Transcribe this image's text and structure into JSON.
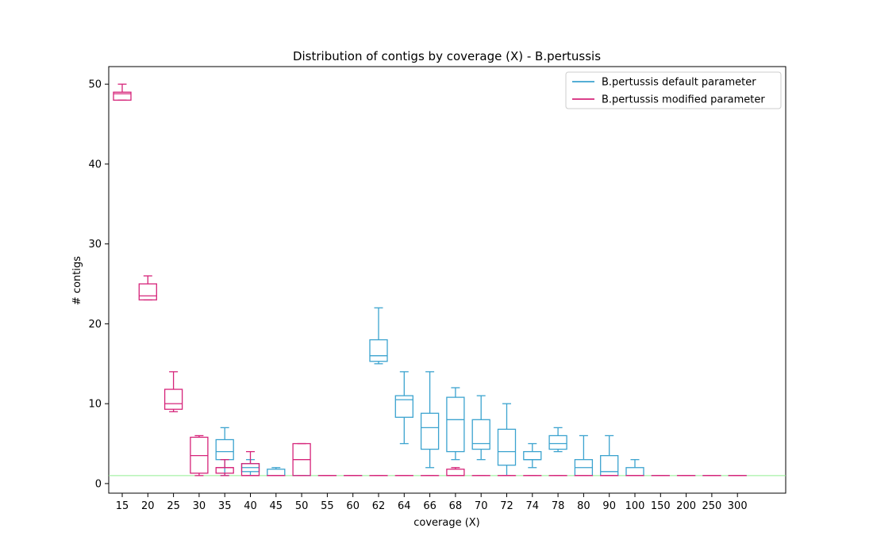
{
  "chart_data": {
    "type": "boxplot",
    "title": "Distribution of contigs by coverage (X) - B.pertussis",
    "xlabel": "coverage (X)",
    "ylabel": "# contigs",
    "ylim": [
      -1.2,
      52.2
    ],
    "yticks": [
      0,
      10,
      20,
      30,
      40,
      50
    ],
    "categories": [
      "15",
      "20",
      "25",
      "30",
      "35",
      "40",
      "45",
      "50",
      "55",
      "60",
      "62",
      "64",
      "66",
      "68",
      "70",
      "72",
      "74",
      "78",
      "80",
      "90",
      "100",
      "150",
      "200",
      "250",
      "300"
    ],
    "reference_line": {
      "y": 1,
      "color": "#90ee90"
    },
    "legend": {
      "placement": "top-right"
    },
    "series": [
      {
        "name": "B.pertussis default parameter",
        "color": "#3ba3cf",
        "boxes": [
          null,
          null,
          null,
          null,
          {
            "whislo": 1,
            "q1": 3,
            "med": 4,
            "q3": 5.5,
            "whishi": 7
          },
          {
            "whislo": 1,
            "q1": 1.5,
            "med": 2,
            "q3": 2.5,
            "whishi": 3
          },
          {
            "whislo": 1,
            "q1": 1,
            "med": 1,
            "q3": 1.8,
            "whishi": 2
          },
          {
            "whislo": 1,
            "q1": 1,
            "med": 1,
            "q3": 1,
            "whishi": 1
          },
          {
            "whislo": 1,
            "q1": 1,
            "med": 1,
            "q3": 1,
            "whishi": 1
          },
          {
            "whislo": 1,
            "q1": 1,
            "med": 1,
            "q3": 1,
            "whishi": 1
          },
          {
            "whislo": 15,
            "q1": 15.3,
            "med": 16,
            "q3": 18,
            "whishi": 22
          },
          {
            "whislo": 5,
            "q1": 8.3,
            "med": 10.5,
            "q3": 11,
            "whishi": 14
          },
          {
            "whislo": 2,
            "q1": 4.3,
            "med": 7,
            "q3": 8.8,
            "whishi": 14
          },
          {
            "whislo": 3,
            "q1": 4,
            "med": 8,
            "q3": 10.8,
            "whishi": 12
          },
          {
            "whislo": 3,
            "q1": 4.3,
            "med": 5,
            "q3": 8,
            "whishi": 11
          },
          {
            "whislo": 1,
            "q1": 2.3,
            "med": 4,
            "q3": 6.8,
            "whishi": 10
          },
          {
            "whislo": 2,
            "q1": 3,
            "med": 3,
            "q3": 4,
            "whishi": 5
          },
          {
            "whislo": 4,
            "q1": 4.3,
            "med": 5,
            "q3": 6,
            "whishi": 7
          },
          {
            "whislo": 1,
            "q1": 1,
            "med": 2,
            "q3": 3,
            "whishi": 6
          },
          {
            "whislo": 1,
            "q1": 1,
            "med": 1.5,
            "q3": 3.5,
            "whishi": 6
          },
          {
            "whislo": 1,
            "q1": 1,
            "med": 1,
            "q3": 2,
            "whishi": 3
          },
          {
            "whislo": 1,
            "q1": 1,
            "med": 1,
            "q3": 1,
            "whishi": 1
          },
          {
            "whislo": 1,
            "q1": 1,
            "med": 1,
            "q3": 1,
            "whishi": 1
          },
          {
            "whislo": 1,
            "q1": 1,
            "med": 1,
            "q3": 1,
            "whishi": 1
          },
          {
            "whislo": 1,
            "q1": 1,
            "med": 1,
            "q3": 1,
            "whishi": 1
          }
        ]
      },
      {
        "name": "B.pertussis modified parameter",
        "color": "#d6247a",
        "boxes": [
          {
            "whislo": 48,
            "q1": 48,
            "med": 48.8,
            "q3": 49,
            "whishi": 50
          },
          {
            "whislo": 23,
            "q1": 23,
            "med": 23.5,
            "q3": 25,
            "whishi": 26
          },
          {
            "whislo": 9,
            "q1": 9.3,
            "med": 10,
            "q3": 11.8,
            "whishi": 14
          },
          {
            "whislo": 1,
            "q1": 1.3,
            "med": 3.5,
            "q3": 5.8,
            "whishi": 6
          },
          {
            "whislo": 1,
            "q1": 1.3,
            "med": 2,
            "q3": 2,
            "whishi": 3
          },
          {
            "whislo": 1,
            "q1": 1,
            "med": 1,
            "q3": 2.5,
            "whishi": 4
          },
          {
            "whislo": 1,
            "q1": 1,
            "med": 1,
            "q3": 1,
            "whishi": 1
          },
          {
            "whislo": 1,
            "q1": 1,
            "med": 3,
            "q3": 5,
            "whishi": 5
          },
          {
            "whislo": 1,
            "q1": 1,
            "med": 1,
            "q3": 1,
            "whishi": 1
          },
          {
            "whislo": 1,
            "q1": 1,
            "med": 1,
            "q3": 1,
            "whishi": 1
          },
          {
            "whislo": 1,
            "q1": 1,
            "med": 1,
            "q3": 1,
            "whishi": 1
          },
          {
            "whislo": 1,
            "q1": 1,
            "med": 1,
            "q3": 1,
            "whishi": 1
          },
          {
            "whislo": 1,
            "q1": 1,
            "med": 1,
            "q3": 1,
            "whishi": 1
          },
          {
            "whislo": 1,
            "q1": 1,
            "med": 1,
            "q3": 1.8,
            "whishi": 2
          },
          {
            "whislo": 1,
            "q1": 1,
            "med": 1,
            "q3": 1,
            "whishi": 1
          },
          {
            "whislo": 1,
            "q1": 1,
            "med": 1,
            "q3": 1,
            "whishi": 1
          },
          {
            "whislo": 1,
            "q1": 1,
            "med": 1,
            "q3": 1,
            "whishi": 1
          },
          {
            "whislo": 1,
            "q1": 1,
            "med": 1,
            "q3": 1,
            "whishi": 1
          },
          {
            "whislo": 1,
            "q1": 1,
            "med": 1,
            "q3": 1,
            "whishi": 1
          },
          {
            "whislo": 1,
            "q1": 1,
            "med": 1,
            "q3": 1,
            "whishi": 1
          },
          {
            "whislo": 1,
            "q1": 1,
            "med": 1,
            "q3": 1,
            "whishi": 1
          },
          {
            "whislo": 1,
            "q1": 1,
            "med": 1,
            "q3": 1,
            "whishi": 1
          },
          {
            "whislo": 1,
            "q1": 1,
            "med": 1,
            "q3": 1,
            "whishi": 1
          },
          {
            "whislo": 1,
            "q1": 1,
            "med": 1,
            "q3": 1,
            "whishi": 1
          },
          {
            "whislo": 1,
            "q1": 1,
            "med": 1,
            "q3": 1,
            "whishi": 1
          }
        ]
      }
    ]
  }
}
